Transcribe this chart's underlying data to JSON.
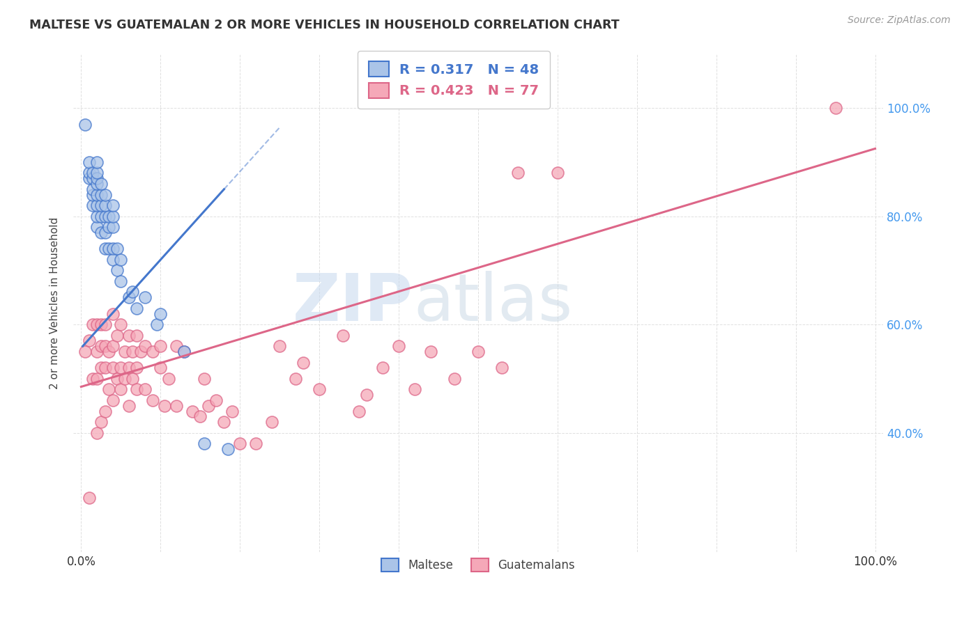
{
  "title": "MALTESE VS GUATEMALAN 2 OR MORE VEHICLES IN HOUSEHOLD CORRELATION CHART",
  "source": "Source: ZipAtlas.com",
  "ylabel": "2 or more Vehicles in Household",
  "ytick_values": [
    0.4,
    0.6,
    0.8,
    1.0
  ],
  "ytick_labels": [
    "40.0%",
    "60.0%",
    "80.0%",
    "100.0%"
  ],
  "legend_labels": [
    "Maltese",
    "Guatemalans"
  ],
  "blue_R": 0.317,
  "blue_N": 48,
  "pink_R": 0.423,
  "pink_N": 77,
  "blue_color": "#aac4e8",
  "pink_color": "#f5a8b8",
  "blue_line_color": "#4477cc",
  "pink_line_color": "#dd6688",
  "blue_scatter_x": [
    0.005,
    0.01,
    0.01,
    0.01,
    0.015,
    0.015,
    0.015,
    0.015,
    0.015,
    0.02,
    0.02,
    0.02,
    0.02,
    0.02,
    0.02,
    0.02,
    0.02,
    0.025,
    0.025,
    0.025,
    0.025,
    0.025,
    0.03,
    0.03,
    0.03,
    0.03,
    0.03,
    0.035,
    0.035,
    0.035,
    0.04,
    0.04,
    0.04,
    0.04,
    0.04,
    0.045,
    0.045,
    0.05,
    0.05,
    0.06,
    0.065,
    0.07,
    0.08,
    0.095,
    0.1,
    0.13,
    0.155,
    0.185
  ],
  "blue_scatter_y": [
    0.97,
    0.87,
    0.88,
    0.9,
    0.82,
    0.84,
    0.85,
    0.87,
    0.88,
    0.78,
    0.8,
    0.82,
    0.84,
    0.86,
    0.87,
    0.88,
    0.9,
    0.77,
    0.8,
    0.82,
    0.84,
    0.86,
    0.74,
    0.77,
    0.8,
    0.82,
    0.84,
    0.74,
    0.78,
    0.8,
    0.72,
    0.74,
    0.78,
    0.8,
    0.82,
    0.7,
    0.74,
    0.68,
    0.72,
    0.65,
    0.66,
    0.63,
    0.65,
    0.6,
    0.62,
    0.55,
    0.38,
    0.37
  ],
  "pink_scatter_x": [
    0.005,
    0.01,
    0.01,
    0.015,
    0.015,
    0.02,
    0.02,
    0.02,
    0.02,
    0.025,
    0.025,
    0.025,
    0.025,
    0.03,
    0.03,
    0.03,
    0.03,
    0.035,
    0.035,
    0.04,
    0.04,
    0.04,
    0.04,
    0.045,
    0.045,
    0.05,
    0.05,
    0.05,
    0.055,
    0.055,
    0.06,
    0.06,
    0.06,
    0.065,
    0.065,
    0.07,
    0.07,
    0.07,
    0.075,
    0.08,
    0.08,
    0.09,
    0.09,
    0.1,
    0.1,
    0.105,
    0.11,
    0.12,
    0.12,
    0.13,
    0.14,
    0.15,
    0.155,
    0.16,
    0.17,
    0.18,
    0.19,
    0.2,
    0.22,
    0.24,
    0.25,
    0.27,
    0.28,
    0.3,
    0.33,
    0.35,
    0.36,
    0.38,
    0.4,
    0.42,
    0.44,
    0.47,
    0.5,
    0.53,
    0.55,
    0.6,
    0.95
  ],
  "pink_scatter_y": [
    0.55,
    0.28,
    0.57,
    0.5,
    0.6,
    0.4,
    0.5,
    0.55,
    0.6,
    0.42,
    0.52,
    0.56,
    0.6,
    0.44,
    0.52,
    0.56,
    0.6,
    0.48,
    0.55,
    0.46,
    0.52,
    0.56,
    0.62,
    0.5,
    0.58,
    0.48,
    0.52,
    0.6,
    0.5,
    0.55,
    0.45,
    0.52,
    0.58,
    0.5,
    0.55,
    0.48,
    0.52,
    0.58,
    0.55,
    0.48,
    0.56,
    0.46,
    0.55,
    0.52,
    0.56,
    0.45,
    0.5,
    0.45,
    0.56,
    0.55,
    0.44,
    0.43,
    0.5,
    0.45,
    0.46,
    0.42,
    0.44,
    0.38,
    0.38,
    0.42,
    0.56,
    0.5,
    0.53,
    0.48,
    0.58,
    0.44,
    0.47,
    0.52,
    0.56,
    0.48,
    0.55,
    0.5,
    0.55,
    0.52,
    0.88,
    0.88,
    1.0
  ],
  "blue_trend_start_x": 0.002,
  "blue_trend_end_x": 0.18,
  "blue_trend_start_y": 0.56,
  "blue_trend_end_y": 0.85,
  "pink_trend_start_x": 0.0,
  "pink_trend_end_x": 1.0,
  "pink_trend_start_y": 0.485,
  "pink_trend_end_y": 0.925,
  "watermark_zip": "ZIP",
  "watermark_atlas": "atlas",
  "background_color": "#ffffff",
  "grid_color": "#e0e0e0",
  "xlim": [
    -0.01,
    1.01
  ],
  "ylim": [
    0.18,
    1.1
  ]
}
